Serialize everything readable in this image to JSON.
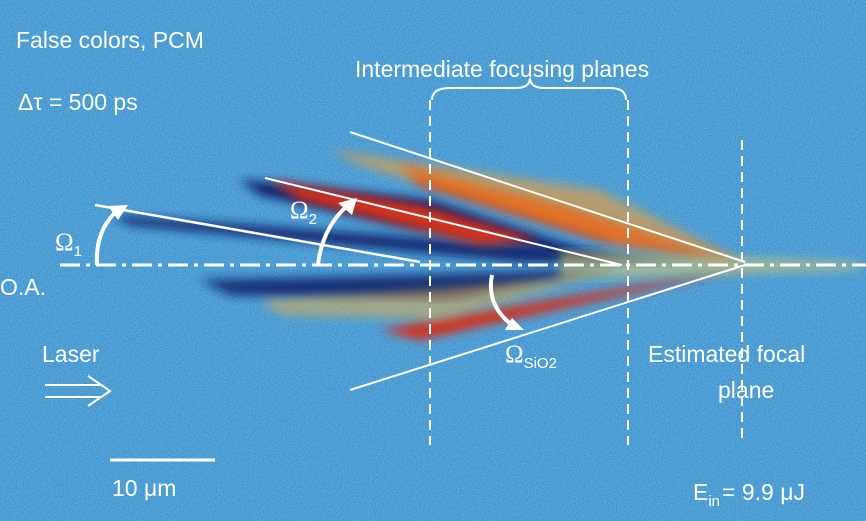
{
  "labels": {
    "false_colors": "False colors, PCM",
    "delay": "Δτ = 500 ps",
    "intermediate": "Intermediate focusing planes",
    "omega1": {
      "symbol": "Ω",
      "subscript": "1"
    },
    "omega2": {
      "symbol": "Ω",
      "subscript": "2"
    },
    "omega_sio2": {
      "symbol": "Ω",
      "subscript": "SiO2"
    },
    "optical_axis": "O.A.",
    "laser": "Laser",
    "focal_plane": [
      "Estimated focal",
      "plane"
    ],
    "scale_bar": "10 μm",
    "energy": {
      "symbol": "E",
      "subscript": "in",
      "rest": "= 9.9 μJ"
    }
  }
}
